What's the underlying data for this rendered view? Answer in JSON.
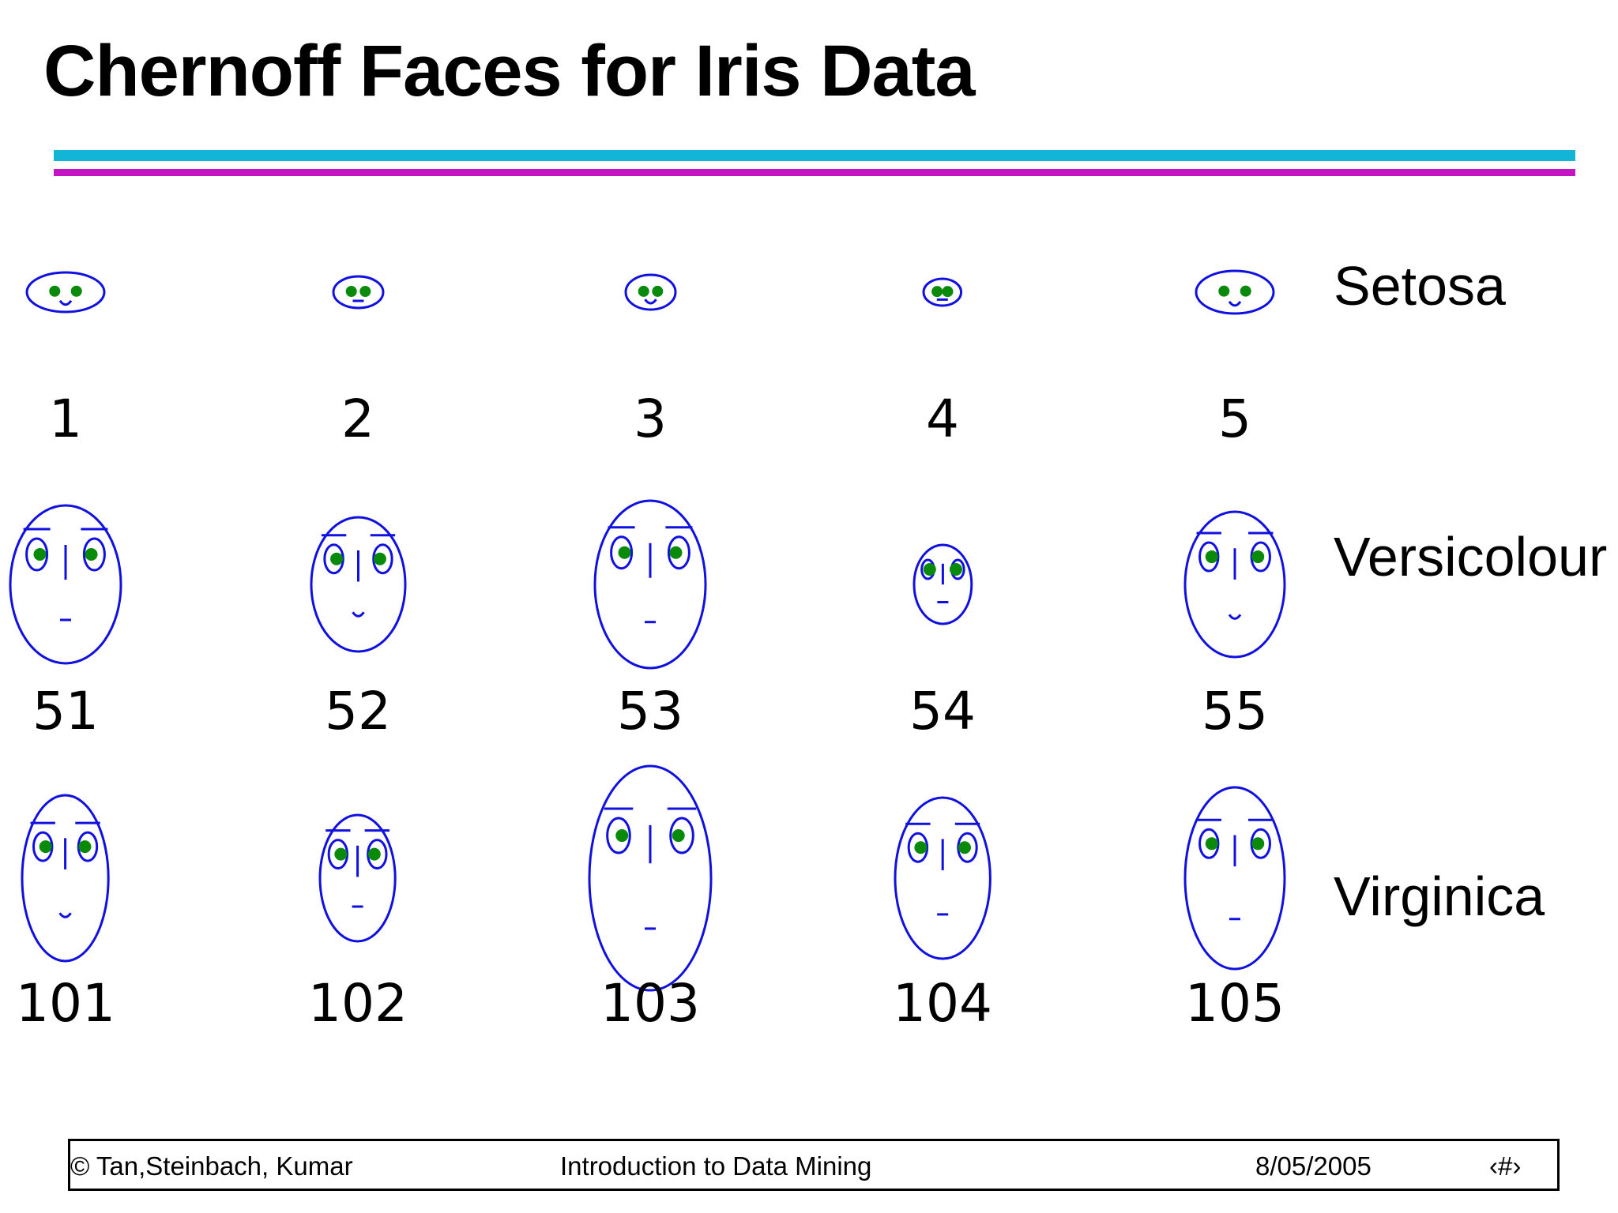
{
  "slide": {
    "title": "Chernoff Faces for Iris Data"
  },
  "species_labels": [
    "Setosa",
    "Versicolour",
    "Virginica"
  ],
  "faces": [
    {
      "id": "1",
      "face_w": 0.7,
      "face_h": 0.25,
      "eye": 0.5,
      "brow": false,
      "nose": false,
      "mouth": "smile"
    },
    {
      "id": "2",
      "face_w": 0.45,
      "face_h": 0.2,
      "eye": 0.6,
      "brow": false,
      "nose": false,
      "mouth": "line"
    },
    {
      "id": "3",
      "face_w": 0.45,
      "face_h": 0.22,
      "eye": 0.6,
      "brow": false,
      "nose": false,
      "mouth": "smile"
    },
    {
      "id": "4",
      "face_w": 0.34,
      "face_h": 0.17,
      "eye": 0.7,
      "brow": false,
      "nose": false,
      "mouth": "line"
    },
    {
      "id": "5",
      "face_w": 0.7,
      "face_h": 0.27,
      "eye": 0.5,
      "brow": false,
      "nose": false,
      "mouth": "smile"
    },
    {
      "id": "51",
      "face_w": 1.0,
      "face_h": 1.0,
      "eye": 1.0,
      "brow": true,
      "nose": true,
      "mouth": "line"
    },
    {
      "id": "52",
      "face_w": 0.85,
      "face_h": 0.85,
      "eye": 0.9,
      "brow": true,
      "nose": true,
      "mouth": "smile"
    },
    {
      "id": "53",
      "face_w": 1.0,
      "face_h": 1.06,
      "eye": 1.0,
      "brow": true,
      "nose": true,
      "mouth": "line"
    },
    {
      "id": "54",
      "face_w": 0.52,
      "face_h": 0.5,
      "eye": 0.6,
      "brow": false,
      "nose": true,
      "mouth": "line"
    },
    {
      "id": "55",
      "face_w": 0.9,
      "face_h": 0.92,
      "eye": 0.9,
      "brow": true,
      "nose": true,
      "mouth": "smile"
    },
    {
      "id": "101",
      "face_w": 0.78,
      "face_h": 1.05,
      "eye": 0.9,
      "brow": true,
      "nose": true,
      "mouth": "smile"
    },
    {
      "id": "102",
      "face_w": 0.68,
      "face_h": 0.8,
      "eye": 0.9,
      "brow": true,
      "nose": true,
      "mouth": "line"
    },
    {
      "id": "103",
      "face_w": 1.1,
      "face_h": 1.42,
      "eye": 1.1,
      "brow": true,
      "nose": true,
      "mouth": "line"
    },
    {
      "id": "104",
      "face_w": 0.86,
      "face_h": 1.02,
      "eye": 0.9,
      "brow": true,
      "nose": true,
      "mouth": "line"
    },
    {
      "id": "105",
      "face_w": 0.9,
      "face_h": 1.15,
      "eye": 0.9,
      "brow": true,
      "nose": true,
      "mouth": "line"
    }
  ],
  "colors": {
    "face_outline": "#1010e0",
    "pupil": "#0a8a0a",
    "rule_top": "#13b5d6",
    "rule_bottom": "#c416c4"
  },
  "footer": {
    "authors": "© Tan,Steinbach, Kumar",
    "course": "Introduction to Data Mining",
    "date": "8/05/2005",
    "page": "‹#›"
  }
}
